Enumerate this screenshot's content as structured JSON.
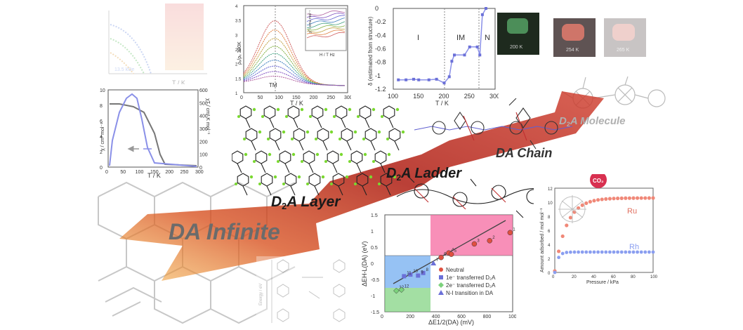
{
  "labels": {
    "infinite": {
      "pre": "D",
      "sub": "",
      "post": "A Infinite",
      "color": "#6b6b6b"
    },
    "layer": {
      "pre": "D",
      "sub": "2",
      "post": "A Layer",
      "color": "#1a1a1a"
    },
    "ladder": {
      "pre": "D",
      "sub": "2",
      "post": "A Ladder",
      "color": "#1a1a1a"
    },
    "chain": {
      "pre": "",
      "sub": "",
      "post": "DA Chain",
      "color": "#333333"
    },
    "molecule": {
      "pre": "D",
      "sub": "2",
      "post": "A Molecule",
      "color": "#b0b0b0"
    }
  },
  "panels": {
    "magnet": {
      "xlabel": "T / K",
      "ylabel_left": "χ / cm³ mol⁻¹",
      "ylabel_right": "χT / cm³ K mol⁻¹",
      "x_ticks": [
        "0",
        "50",
        "100",
        "150",
        "200",
        "250",
        "300"
      ],
      "yl_ticks": [
        "0",
        "2",
        "4",
        "6",
        "8",
        "10"
      ],
      "yr_ticks": [
        "0",
        "100",
        "200",
        "300",
        "400",
        "500",
        "600"
      ]
    },
    "topleft_faded": {
      "xlabel": "T / K",
      "x_ticks": [
        "0",
        "100",
        "200"
      ],
      "note": "13.5 kOe"
    },
    "conductivity": {
      "xlabel": "T / K",
      "ylabel": "ρₓ/ρₓ 300K",
      "x_ticks": [
        "0",
        "50",
        "100",
        "150",
        "200",
        "250",
        "300"
      ],
      "y_ticks": [
        "1",
        "1.5",
        "2",
        "2.5",
        "3",
        "3.5",
        "4"
      ],
      "marker": "TM",
      "inset_xlabel": "H / T Hz",
      "inset_ylabel": "χ'' / emu mol⁻¹",
      "inset_x_ticks": [
        "0.8",
        "0.8",
        "1",
        "1.2",
        "1.4",
        "1.6"
      ],
      "inset_y_ticks": [
        "0.05",
        "0.1",
        "0.15"
      ]
    },
    "delta": {
      "xlabel": "T / K",
      "ylabel": "δ (estimated from structure)",
      "x_ticks": [
        "100",
        "150",
        "200",
        "250",
        "300"
      ],
      "y_ticks": [
        "-1.2",
        "-1",
        "-0.8",
        "-0.6",
        "-0.4",
        "-0.2",
        "0"
      ],
      "regions": [
        "I",
        "IM",
        "N"
      ]
    },
    "photos": {
      "labels": [
        "200 K",
        "254 K",
        "265 K"
      ]
    },
    "energy": {
      "xlabel": "ΔE1/2(DA) (mV)",
      "ylabel": "ΔEH-L(DA) (eV)",
      "x_ticks": [
        "0",
        "200",
        "400",
        "600",
        "800",
        "1000"
      ],
      "y_ticks": [
        "-1.5",
        "-1",
        "-0.5",
        "0",
        "0.5",
        "1",
        "1.5"
      ],
      "legend": [
        "Neutral",
        "1e⁻ transferred D₂A",
        "2e⁻ transferred D₂A",
        "N-I transition in DA"
      ],
      "point_labels": [
        "1",
        "2",
        "3",
        "4",
        "5",
        "6",
        "7",
        "8",
        "9",
        "10",
        "11",
        "12",
        "12"
      ]
    },
    "adsorption": {
      "xlabel": "Pressure / kPa",
      "ylabel": "Amount adsorbed / mol mol⁻¹",
      "x_ticks": [
        "0",
        "20",
        "40",
        "60",
        "80",
        "100"
      ],
      "y_ticks": [
        "0",
        "2",
        "4",
        "6",
        "8",
        "10",
        "12"
      ],
      "bubble": "CO₂",
      "series": [
        "Ru",
        "Rh"
      ]
    },
    "calc": {
      "ylabel": "Energy / eV"
    }
  },
  "colors": {
    "arrow_red": "#c0271a",
    "arrow_orange": "#f0a030",
    "pink_region": "#f56aa0",
    "blue_region": "#6aa8f0",
    "green_region": "#7cd27c",
    "neutral_red": "#e05040",
    "transfer_blue": "#6b70d8",
    "adsorb_red": "#f08878",
    "adsorb_blue": "#8a9ef0"
  }
}
